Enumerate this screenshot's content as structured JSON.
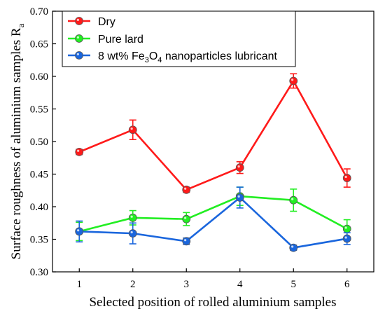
{
  "chart_data": {
    "type": "line",
    "xlabel": "Selected position of rolled aluminium samples",
    "ylabel": "Surface roughness of aluminium samples R",
    "ylabel_subscript": "a",
    "x": [
      1,
      2,
      3,
      4,
      5,
      6
    ],
    "xlim": [
      0.5,
      6.5
    ],
    "ylim": [
      0.3,
      0.7
    ],
    "x_ticks": [
      "1",
      "2",
      "3",
      "4",
      "5",
      "6"
    ],
    "y_ticks": [
      "0.30",
      "0.35",
      "0.40",
      "0.45",
      "0.50",
      "0.55",
      "0.60",
      "0.65",
      "0.70"
    ],
    "grid": false,
    "legend_position": "top-left",
    "series": [
      {
        "name": "Dry",
        "color": "#ff1a1a",
        "values": [
          0.484,
          0.518,
          0.426,
          0.46,
          0.593,
          0.444
        ],
        "errors": [
          0.004,
          0.015,
          0.004,
          0.009,
          0.011,
          0.014
        ]
      },
      {
        "name": "Pure lard",
        "color": "#22ee22",
        "values": [
          0.362,
          0.383,
          0.381,
          0.416,
          0.41,
          0.366
        ],
        "errors": [
          0.014,
          0.011,
          0.01,
          0.014,
          0.017,
          0.014
        ]
      },
      {
        "name": "8 wt% Fe3O4 nanoparticles lubricant",
        "name_parts": [
          "8 wt% Fe",
          "3",
          "O",
          "4",
          " nanoparticles lubricant"
        ],
        "color": "#1a66dd",
        "values": [
          0.362,
          0.359,
          0.347,
          0.414,
          0.337,
          0.351
        ],
        "errors": [
          0.016,
          0.016,
          0.005,
          0.016,
          0.004,
          0.009
        ]
      }
    ]
  }
}
